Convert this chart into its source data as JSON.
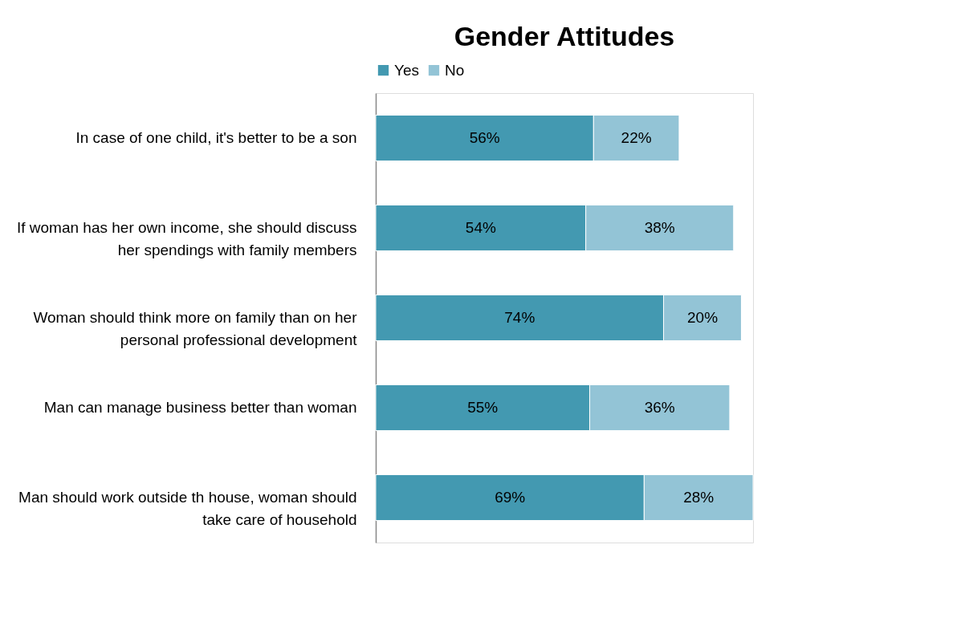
{
  "chart_data": {
    "type": "bar",
    "title": "Gender Attitudes",
    "orientation": "horizontal",
    "stacked": true,
    "legend": "top",
    "categories": [
      "In case of one child, it's better to be a son",
      "If woman has her own income, she should discuss her spendings with family members",
      "Woman should think more on family than on her personal professional development",
      "Man can manage business better than woman",
      "Man should work outside th house, woman should take care of household"
    ],
    "series": [
      {
        "name": "Yes",
        "color": "#4399b1",
        "values": [
          56,
          54,
          74,
          55,
          69
        ],
        "value_labels": [
          "56%",
          "54%",
          "74%",
          "55%",
          "69%"
        ]
      },
      {
        "name": "No",
        "color": "#93c4d6",
        "values": [
          22,
          38,
          20,
          36,
          28
        ],
        "value_labels": [
          "22%",
          "38%",
          "20%",
          "36%",
          "28%"
        ]
      }
    ]
  }
}
